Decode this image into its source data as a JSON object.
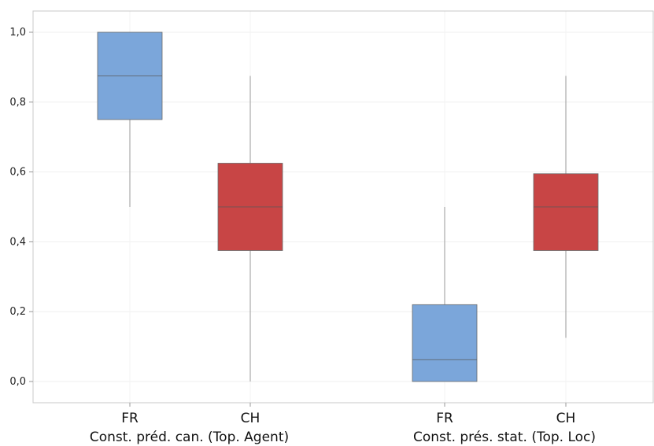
{
  "chart_data": {
    "type": "boxplot",
    "title": "",
    "xlabel": "",
    "ylabel": "",
    "ylim": [
      -0.06,
      1.06
    ],
    "y_ticks": [
      0.0,
      0.2,
      0.4,
      0.6,
      0.8,
      1.0
    ],
    "y_tick_labels": [
      "0,0",
      "0,2",
      "0,4",
      "0,6",
      "0,8",
      "1,0"
    ],
    "grid": true,
    "legend": "none",
    "groups": [
      {
        "label": "Const. préd. can. (Top. Agent)",
        "boxes": [
          {
            "category": "FR",
            "color": "#7ba6da",
            "min": 0.5,
            "q1": 0.75,
            "median": 0.875,
            "q3": 1.0,
            "max": 1.0
          },
          {
            "category": "CH",
            "color": "#c84545",
            "min": 0.0,
            "q1": 0.375,
            "median": 0.5,
            "q3": 0.625,
            "max": 0.875
          }
        ]
      },
      {
        "label": "Const. prés. stat. (Top. Loc)",
        "boxes": [
          {
            "category": "FR",
            "color": "#7ba6da",
            "min": 0.0,
            "q1": 0.0,
            "median": 0.0625,
            "q3": 0.22,
            "max": 0.5
          },
          {
            "category": "CH",
            "color": "#c84545",
            "min": 0.125,
            "q1": 0.375,
            "median": 0.5,
            "q3": 0.595,
            "max": 0.875
          }
        ]
      }
    ]
  }
}
